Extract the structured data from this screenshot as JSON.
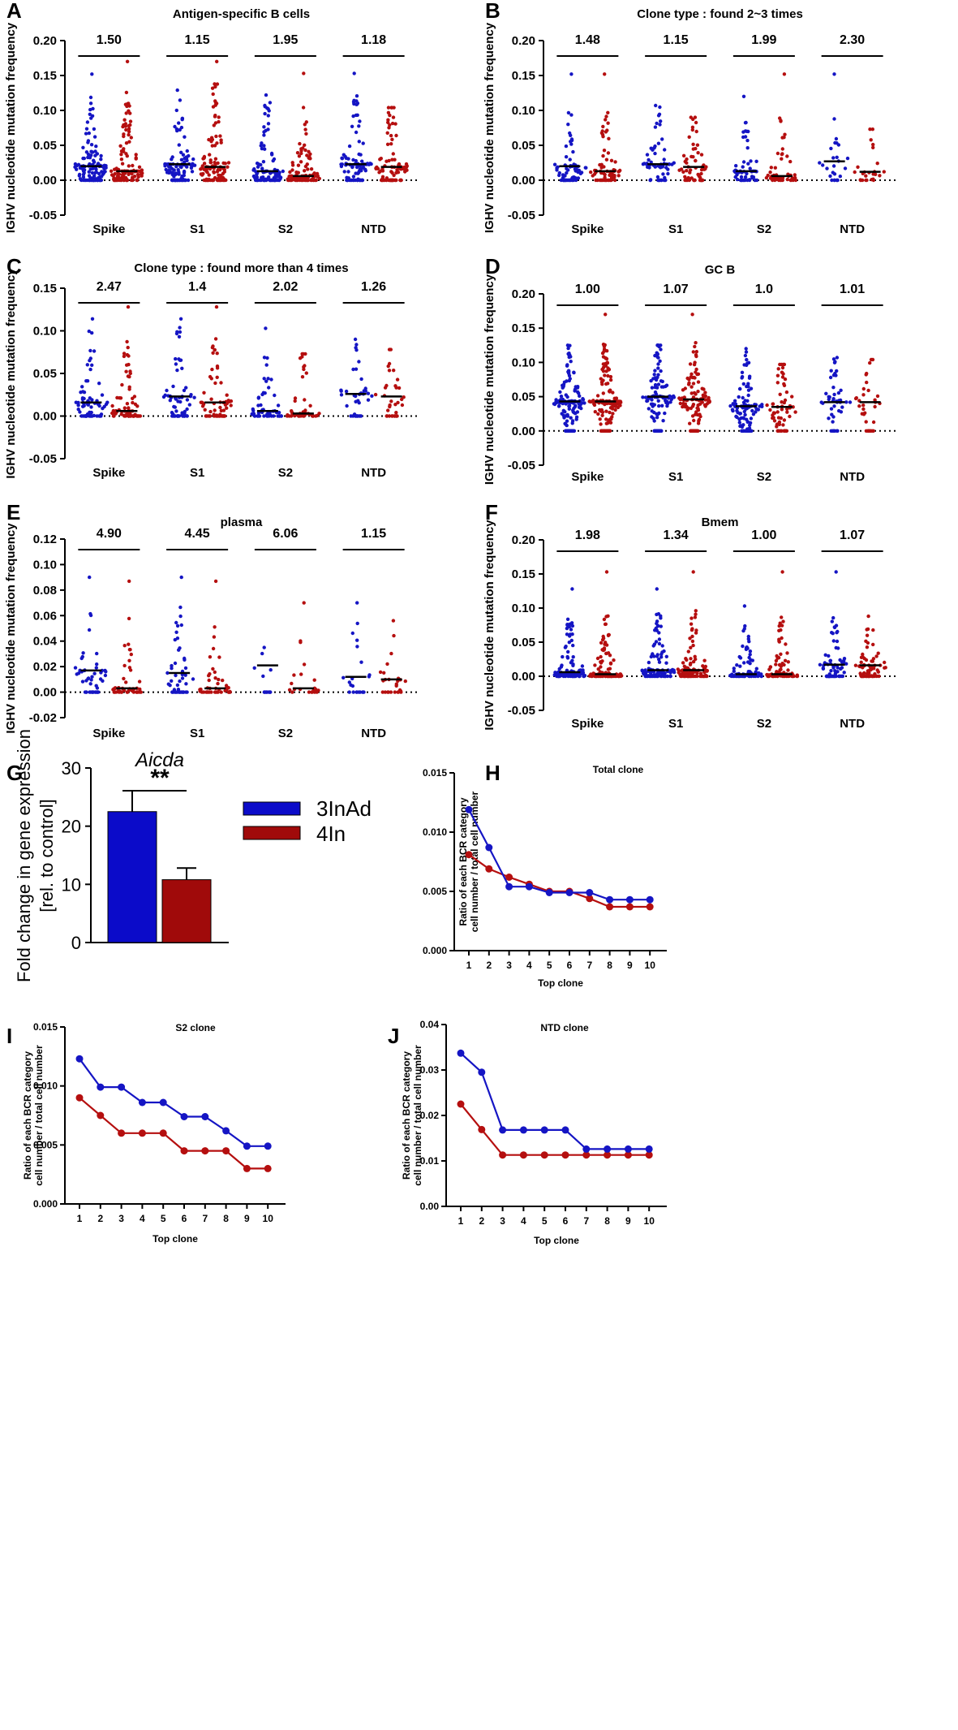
{
  "colors": {
    "blue": "#1515c4",
    "red": "#b50f0f",
    "bar_blue": "#0b0bc9",
    "bar_red": "#a00a0a"
  },
  "legend": {
    "items": [
      "3InAd",
      "4In"
    ]
  },
  "chart_data": [
    {
      "id": "A",
      "type": "scatter",
      "title": "Antigen-specific B cells",
      "ylabel": "IGHV nucleotide mutation frequency",
      "ylim": [
        -0.05,
        0.2
      ],
      "yticks": [
        "0.20",
        "0.15",
        "0.10",
        "0.05",
        "0.00",
        "-0.05"
      ],
      "categories": [
        "Spike",
        "S1",
        "S2",
        "NTD"
      ],
      "comparisons": [
        "1.50",
        "1.15",
        "1.95",
        "1.18"
      ],
      "series": [
        {
          "name": "3InAd",
          "medians": [
            0.02,
            0.023,
            0.013,
            0.023
          ],
          "max": [
            0.152,
            0.129,
            0.122,
            0.153
          ],
          "spread": [
            0.078,
            0.078,
            0.078,
            0.075
          ],
          "n": [
            120,
            110,
            100,
            90
          ]
        },
        {
          "name": "4In",
          "medians": [
            0.013,
            0.019,
            0.006,
            0.019
          ],
          "max": [
            0.17,
            0.17,
            0.153,
            0.104
          ],
          "spread": [
            0.085,
            0.085,
            0.081,
            0.078
          ],
          "n": [
            120,
            110,
            100,
            90
          ]
        }
      ]
    },
    {
      "id": "B",
      "type": "scatter",
      "title": "Clone type  : found 2~3 times",
      "ylabel": "IGHV nucleotide mutation frequency",
      "ylim": [
        -0.05,
        0.2
      ],
      "yticks": [
        "0.20",
        "0.15",
        "0.10",
        "0.05",
        "0.00",
        "-0.05"
      ],
      "categories": [
        "Spike",
        "S1",
        "S2",
        "NTD"
      ],
      "comparisons": [
        "1.48",
        "1.15",
        "1.99",
        "2.30"
      ],
      "series": [
        {
          "name": "3InAd",
          "medians": [
            0.02,
            0.023,
            0.013,
            0.027
          ],
          "max": [
            0.152,
            0.107,
            0.12,
            0.152
          ],
          "spread": [
            0.06,
            0.06,
            0.06,
            0.05
          ],
          "n": [
            70,
            60,
            50,
            22
          ]
        },
        {
          "name": "4In",
          "medians": [
            0.013,
            0.019,
            0.006,
            0.012
          ],
          "max": [
            0.152,
            0.09,
            0.152,
            0.073
          ],
          "spread": [
            0.06,
            0.06,
            0.06,
            0.05
          ],
          "n": [
            70,
            60,
            50,
            22
          ]
        }
      ]
    },
    {
      "id": "C",
      "type": "scatter",
      "title": "Clone type : found more than  4 times",
      "ylabel": "IGHV nucleotide mutation frequency",
      "ylim": [
        -0.05,
        0.15
      ],
      "yticks": [
        "0.15",
        "0.10",
        "0.05",
        "0.00",
        "-0.05"
      ],
      "categories": [
        "Spike",
        "S1",
        "S2",
        "NTD"
      ],
      "comparisons": [
        "2.47",
        "1.4",
        "2.02",
        "1.26"
      ],
      "series": [
        {
          "name": "3InAd",
          "medians": [
            0.016,
            0.023,
            0.006,
            0.026
          ],
          "max": [
            0.114,
            0.114,
            0.103,
            0.09
          ],
          "spread": [
            0.06,
            0.06,
            0.06,
            0.045
          ],
          "n": [
            70,
            60,
            50,
            35
          ]
        },
        {
          "name": "4In",
          "medians": [
            0.006,
            0.016,
            0.003,
            0.023
          ],
          "max": [
            0.128,
            0.128,
            0.073,
            0.078
          ],
          "spread": [
            0.06,
            0.06,
            0.06,
            0.045
          ],
          "n": [
            70,
            60,
            50,
            30
          ]
        }
      ]
    },
    {
      "id": "D",
      "type": "scatter",
      "title": "GC B",
      "ylabel": "IGHV nucleotide mutation frequency",
      "ylim": [
        -0.05,
        0.2
      ],
      "yticks": [
        "0.20",
        "0.15",
        "0.10",
        "0.05",
        "0.00",
        "-0.05"
      ],
      "categories": [
        "Spike",
        "S1",
        "S2",
        "NTD"
      ],
      "comparisons": [
        "1.00",
        "1.07",
        "1.0",
        "1.01"
      ],
      "series": [
        {
          "name": "3InAd",
          "medians": [
            0.043,
            0.05,
            0.036,
            0.042
          ],
          "max": [
            0.125,
            0.125,
            0.12,
            0.107
          ],
          "spread": [
            0.06,
            0.06,
            0.06,
            0.05
          ],
          "n": [
            150,
            120,
            110,
            45
          ]
        },
        {
          "name": "4In",
          "medians": [
            0.043,
            0.046,
            0.035,
            0.042
          ],
          "max": [
            0.17,
            0.17,
            0.097,
            0.104
          ],
          "spread": [
            0.06,
            0.06,
            0.06,
            0.05
          ],
          "n": [
            150,
            120,
            60,
            30
          ]
        }
      ]
    },
    {
      "id": "E",
      "type": "scatter",
      "title": "plasma",
      "ylabel": "IGHV nucleotide mutation frequency",
      "ylim": [
        -0.02,
        0.12
      ],
      "yticks": [
        "0.12",
        "0.10",
        "0.08",
        "0.06",
        "0.04",
        "0.02",
        "0.00",
        "-0.02"
      ],
      "categories": [
        "Spike",
        "S1",
        "S2",
        "NTD"
      ],
      "comparisons": [
        "4.90",
        "4.45",
        "6.06",
        "1.15"
      ],
      "series": [
        {
          "name": "3InAd",
          "medians": [
            0.017,
            0.015,
            0.021,
            0.012
          ],
          "max": [
            0.09,
            0.09,
            0.035,
            0.07
          ],
          "spread": [
            0.04,
            0.04,
            0.02,
            0.035
          ],
          "n": [
            45,
            45,
            10,
            18
          ]
        },
        {
          "name": "4In",
          "medians": [
            0.003,
            0.003,
            0.003,
            0.01
          ],
          "max": [
            0.087,
            0.087,
            0.07,
            0.056
          ],
          "spread": [
            0.04,
            0.04,
            0.035,
            0.035
          ],
          "n": [
            45,
            40,
            18,
            22
          ]
        }
      ]
    },
    {
      "id": "F",
      "type": "scatter",
      "title": "Bmem",
      "ylabel": "IGHV nucleotide mutation frequency",
      "ylim": [
        -0.05,
        0.2
      ],
      "yticks": [
        "0.20",
        "0.15",
        "0.10",
        "0.05",
        "0.00",
        "-0.05"
      ],
      "categories": [
        "Spike",
        "S1",
        "S2",
        "NTD"
      ],
      "comparisons": [
        "1.98",
        "1.34",
        "1.00",
        "1.07"
      ],
      "series": [
        {
          "name": "3InAd",
          "medians": [
            0.006,
            0.009,
            0.003,
            0.017
          ],
          "max": [
            0.128,
            0.128,
            0.103,
            0.153
          ],
          "spread": [
            0.06,
            0.06,
            0.055,
            0.05
          ],
          "n": [
            110,
            100,
            90,
            70
          ]
        },
        {
          "name": "4In",
          "medians": [
            0.003,
            0.009,
            0.003,
            0.016
          ],
          "max": [
            0.153,
            0.153,
            0.153,
            0.088
          ],
          "spread": [
            0.065,
            0.065,
            0.06,
            0.05
          ],
          "n": [
            110,
            100,
            90,
            70
          ]
        }
      ]
    },
    {
      "id": "G",
      "type": "bar",
      "title": "Aicda",
      "ylabel": [
        "Fold change in gene expression",
        "[rel. to control]"
      ],
      "ylim": [
        0,
        30
      ],
      "yticks": [
        "30",
        "20",
        "10",
        "0"
      ],
      "categories": [
        "3InAd",
        "4In"
      ],
      "values": [
        22.5,
        10.8
      ],
      "errors": [
        3.6,
        2.0
      ],
      "significance": "**"
    },
    {
      "id": "H",
      "type": "line",
      "title": "Total clone",
      "ylabel": [
        "Ratio of each BCR category",
        "cell number / total cell number"
      ],
      "xlabel": "Top clone",
      "x": [
        "1",
        "2",
        "3",
        "4",
        "5",
        "6",
        "7",
        "8",
        "9",
        "10"
      ],
      "ylim": [
        0,
        0.015
      ],
      "yticks": [
        "0.015",
        "0.010",
        "0.005",
        "0.000"
      ],
      "series": [
        {
          "name": "3InAd",
          "values": [
            0.0119,
            0.0087,
            0.0054,
            0.0054,
            0.0049,
            0.0049,
            0.0049,
            0.0043,
            0.0043,
            0.0043
          ]
        },
        {
          "name": "4In",
          "values": [
            0.0081,
            0.0069,
            0.0062,
            0.0056,
            0.005,
            0.005,
            0.0044,
            0.0037,
            0.0037,
            0.0037
          ]
        }
      ]
    },
    {
      "id": "I",
      "type": "line",
      "title": "S2 clone",
      "ylabel": [
        "Ratio of each BCR category",
        "cell number / total cell number"
      ],
      "xlabel": "Top clone",
      "x": [
        "1",
        "2",
        "3",
        "4",
        "5",
        "6",
        "7",
        "8",
        "9",
        "10"
      ],
      "ylim": [
        0,
        0.015
      ],
      "yticks": [
        "0.015",
        "0.010",
        "0.005",
        "0.000"
      ],
      "series": [
        {
          "name": "3InAd",
          "values": [
            0.0123,
            0.0099,
            0.0099,
            0.0086,
            0.0086,
            0.0074,
            0.0074,
            0.0062,
            0.0049,
            0.0049
          ]
        },
        {
          "name": "4In",
          "values": [
            0.009,
            0.0075,
            0.006,
            0.006,
            0.006,
            0.0045,
            0.0045,
            0.0045,
            0.003,
            0.003
          ]
        }
      ]
    },
    {
      "id": "J",
      "type": "line",
      "title": "NTD clone",
      "ylabel": [
        "Ratio of each BCR category",
        "cell number / total cell number"
      ],
      "xlabel": "Top clone",
      "x": [
        "1",
        "2",
        "3",
        "4",
        "5",
        "6",
        "7",
        "8",
        "9",
        "10"
      ],
      "ylim": [
        0,
        0.04
      ],
      "yticks": [
        "0.04",
        "0.03",
        "0.02",
        "0.01",
        "0.00"
      ],
      "series": [
        {
          "name": "3InAd",
          "values": [
            0.0337,
            0.0295,
            0.0168,
            0.0168,
            0.0168,
            0.0168,
            0.0126,
            0.0126,
            0.0126,
            0.0126
          ]
        },
        {
          "name": "4In",
          "values": [
            0.0225,
            0.0169,
            0.0113,
            0.0113,
            0.0113,
            0.0113,
            0.0113,
            0.0113,
            0.0113,
            0.0113
          ]
        }
      ]
    }
  ]
}
